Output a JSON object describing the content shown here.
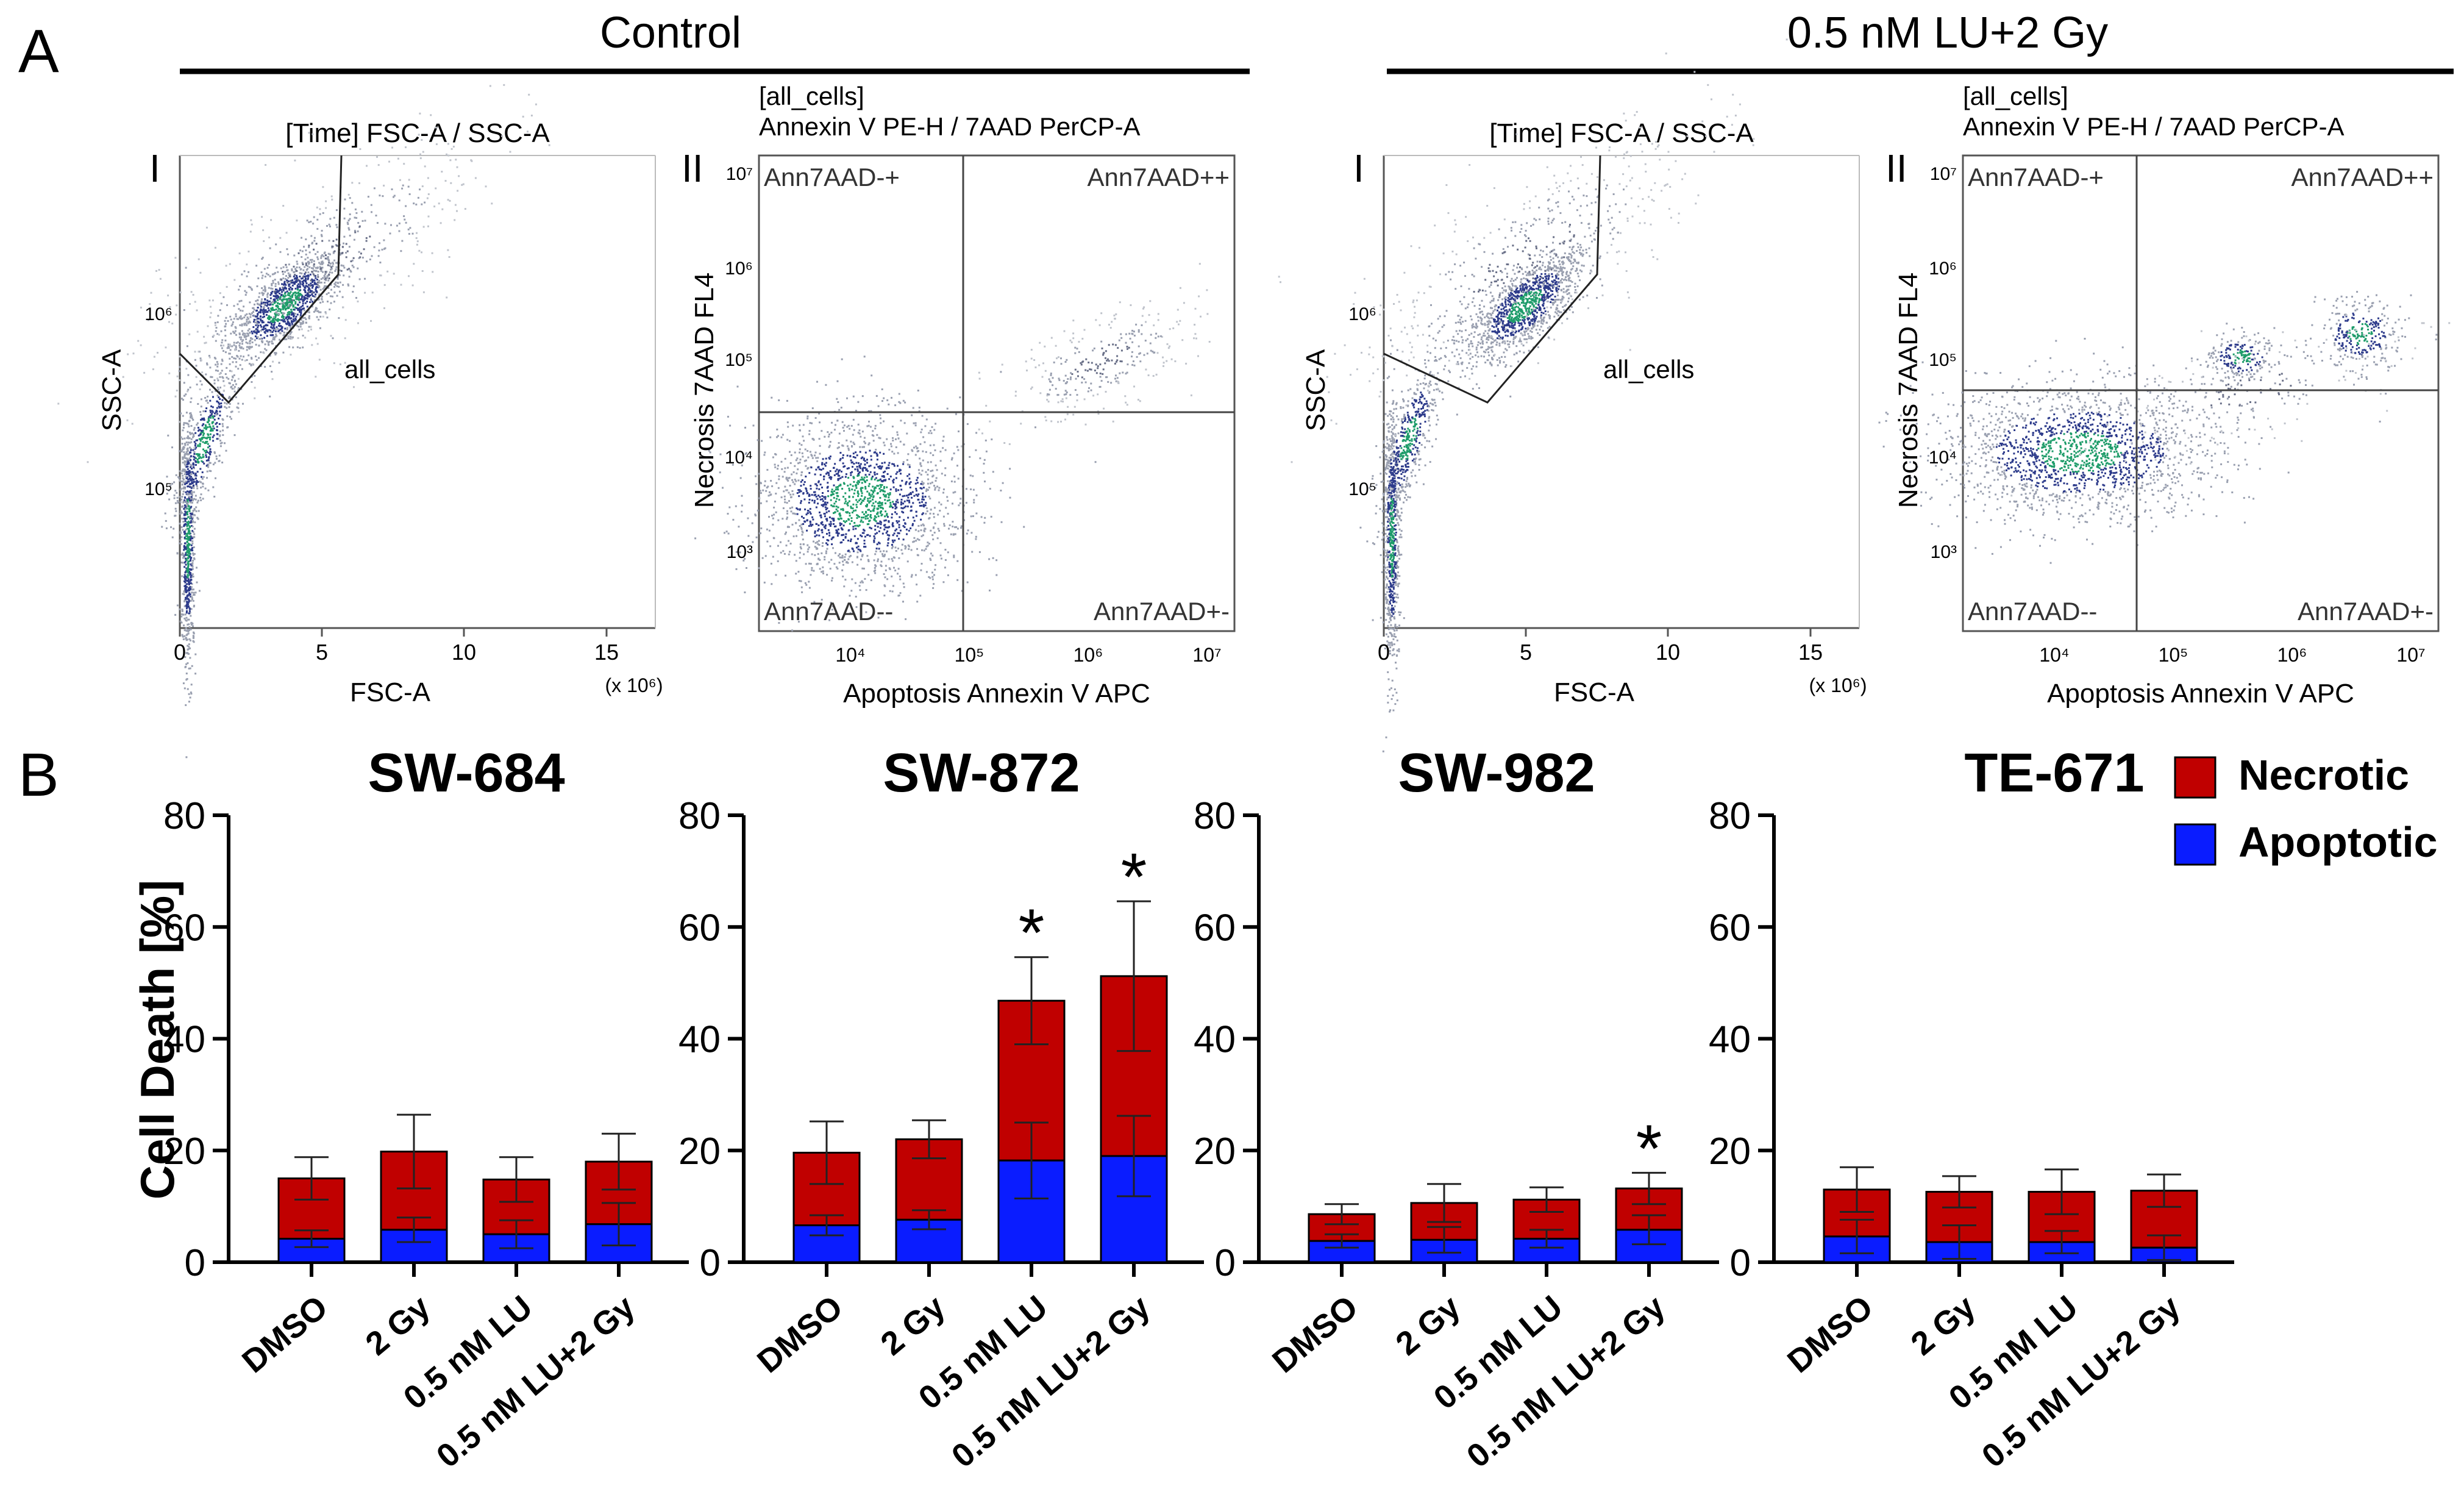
{
  "panels": {
    "a_letter": "A",
    "b_letter": "B"
  },
  "flow": {
    "groups": [
      {
        "title": "Control",
        "plot1": {
          "roman": "I",
          "header": "[Time] FSC-A / SSC-A",
          "gate": "all_cells",
          "xlabel": "FSC-A",
          "ylabel": "SSC-A",
          "xticks": [
            "0",
            "5",
            "10",
            "15"
          ],
          "xmult": "(x 10⁶)",
          "yticks": [
            "10⁶",
            "10⁵"
          ]
        },
        "plot2": {
          "roman": "II",
          "header1": "[all_cells]",
          "header2": "Annexin V PE-H / 7AAD PerCP-A",
          "xlabel": "Apoptosis Annexin V APC",
          "ylabel": "Necrosis 7AAD FL4",
          "xticks": [
            "10⁴",
            "10⁵",
            "10⁶",
            "10⁷"
          ],
          "yticks": [
            "10⁷",
            "10⁶",
            "10⁵",
            "10⁴",
            "10³"
          ],
          "quadrants": [
            "Ann7AAD-+",
            "Ann7AAD++",
            "Ann7AAD--",
            "Ann7AAD+-"
          ]
        }
      },
      {
        "title": "0.5 nM LU+2 Gy",
        "plot1": {
          "roman": "I",
          "header": "[Time] FSC-A / SSC-A",
          "gate": "all_cells",
          "xlabel": "FSC-A",
          "ylabel": "SSC-A",
          "xticks": [
            "0",
            "5",
            "10",
            "15"
          ],
          "xmult": "(x 10⁶)",
          "yticks": [
            "10⁶",
            "10⁵"
          ]
        },
        "plot2": {
          "roman": "II",
          "header1": "[all_cells]",
          "header2": "Annexin V PE-H / 7AAD PerCP-A",
          "xlabel": "Apoptosis Annexin V APC",
          "ylabel": "Necrosis 7AAD FL4",
          "xticks": [
            "10⁴",
            "10⁵",
            "10⁶",
            "10⁷"
          ],
          "yticks": [
            "10⁷",
            "10⁶",
            "10⁵",
            "10⁴",
            "10³"
          ],
          "quadrants": [
            "Ann7AAD-+",
            "Ann7AAD++",
            "Ann7AAD--",
            "Ann7AAD+-"
          ]
        }
      }
    ]
  },
  "colors": {
    "necrotic": "#c00000",
    "apoptotic": "#0a1cff",
    "axis": "#000000"
  },
  "legend": {
    "necrotic": "Necrotic",
    "apoptotic": "Apoptotic"
  },
  "chart_data": [
    {
      "type": "bar",
      "stacked": true,
      "title": "SW-684",
      "ylabel": "Cell Death [%]",
      "ylim": [
        0,
        80
      ],
      "yticks": [
        "0",
        "20",
        "40",
        "60",
        "80"
      ],
      "categories": [
        "DMSO",
        "2 Gy",
        "0.5 nM LU",
        "0.5 nM LU+2 Gy"
      ],
      "series": [
        {
          "name": "Apoptotic",
          "values": [
            4.2,
            5.8,
            5.0,
            6.8
          ],
          "errors": [
            1.5,
            2.2,
            2.5,
            3.8
          ]
        },
        {
          "name": "Necrotic",
          "values": [
            10.8,
            14.0,
            9.8,
            11.2
          ],
          "errors": [
            3.8,
            6.6,
            4.0,
            5.0
          ]
        }
      ],
      "significant": [
        false,
        false,
        false,
        false
      ]
    },
    {
      "type": "bar",
      "stacked": true,
      "title": "SW-872",
      "ylabel": "",
      "ylim": [
        0,
        80
      ],
      "yticks": [
        "0",
        "20",
        "40",
        "60",
        "80"
      ],
      "categories": [
        "DMSO",
        "2 Gy",
        "0.5 nM LU",
        "0.5 nM LU+2 Gy"
      ],
      "series": [
        {
          "name": "Apoptotic",
          "values": [
            6.6,
            7.6,
            18.2,
            19.0
          ],
          "errors": [
            1.8,
            1.7,
            6.8,
            7.2
          ]
        },
        {
          "name": "Necrotic",
          "values": [
            13.0,
            14.4,
            28.6,
            32.2
          ],
          "errors": [
            5.6,
            3.4,
            7.8,
            13.4
          ]
        }
      ],
      "significant": [
        false,
        false,
        true,
        true
      ]
    },
    {
      "type": "bar",
      "stacked": true,
      "title": "SW-982",
      "ylabel": "",
      "ylim": [
        0,
        80
      ],
      "yticks": [
        "0",
        "20",
        "40",
        "60",
        "80"
      ],
      "categories": [
        "DMSO",
        "2 Gy",
        "0.5 nM LU",
        "0.5 nM LU+2 Gy"
      ],
      "series": [
        {
          "name": "Apoptotic",
          "values": [
            3.8,
            4.0,
            4.2,
            5.8
          ],
          "errors": [
            1.2,
            2.3,
            1.6,
            2.6
          ]
        },
        {
          "name": "Necrotic",
          "values": [
            4.8,
            6.6,
            7.0,
            7.4
          ],
          "errors": [
            1.8,
            3.4,
            2.2,
            2.8
          ]
        }
      ],
      "significant": [
        false,
        false,
        false,
        true
      ]
    },
    {
      "type": "bar",
      "stacked": true,
      "title": "TE-671",
      "ylabel": "",
      "ylim": [
        0,
        80
      ],
      "yticks": [
        "0",
        "20",
        "40",
        "60",
        "80"
      ],
      "categories": [
        "DMSO",
        "2 Gy",
        "0.5 nM LU",
        "0.5 nM LU+2 Gy"
      ],
      "series": [
        {
          "name": "Apoptotic",
          "values": [
            4.6,
            3.6,
            3.6,
            2.6
          ],
          "errors": [
            3.0,
            3.0,
            2.0,
            2.2
          ]
        },
        {
          "name": "Necrotic",
          "values": [
            8.4,
            9.0,
            9.0,
            10.2
          ],
          "errors": [
            4.0,
            2.8,
            4.0,
            2.9
          ]
        }
      ],
      "significant": [
        false,
        false,
        false,
        false
      ]
    }
  ]
}
